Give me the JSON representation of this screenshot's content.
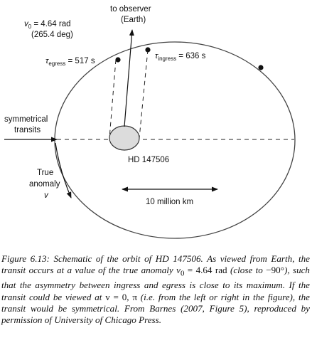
{
  "labels": {
    "v0_line1": "v",
    "v0_sub": "0",
    "v0_rest": " = 4.64 rad",
    "v0_line2": "(265.4 deg)",
    "observer_line1": "to observer",
    "observer_line2": "(Earth)",
    "tau_egress_sym": "τ",
    "tau_egress_sub": "egress",
    "tau_egress_val": " = 517 s",
    "tau_ingress_sym": "τ",
    "tau_ingress_sub": "ingress",
    "tau_ingress_val": " = 636 s",
    "symmetrical_line1": "symmetrical",
    "symmetrical_line2": "transits",
    "star_name": "HD 147506",
    "anomaly_line1": "True",
    "anomaly_line2": "anomaly",
    "anomaly_symbol": "v",
    "scale_label": "10 million km"
  },
  "caption": {
    "figure_label": "Figure 6.13:",
    "text_1": " Schematic of the orbit of HD 147506. As viewed from Earth, the transit occurs at a value of the true anomaly ",
    "v0_symbol": "v",
    "v0_sub": "0",
    "v0_value": " = 4.64 rad",
    "text_2": " (close to ",
    "angle": "−90°",
    "text_3": "), such that the asymmetry between ingress and egress is close to its maximum. If the transit could be viewed at ",
    "v_eq": "v = 0, π",
    "text_4": " (i.e. from the left or right in the figure), the transit would be symmetrical. From Barnes (2007, Figure 5), reproduced by permission of University of Chicago Press."
  },
  "colors": {
    "ink": "#111111",
    "star_fill": "#dcdcdc",
    "star_stroke": "#333333"
  }
}
